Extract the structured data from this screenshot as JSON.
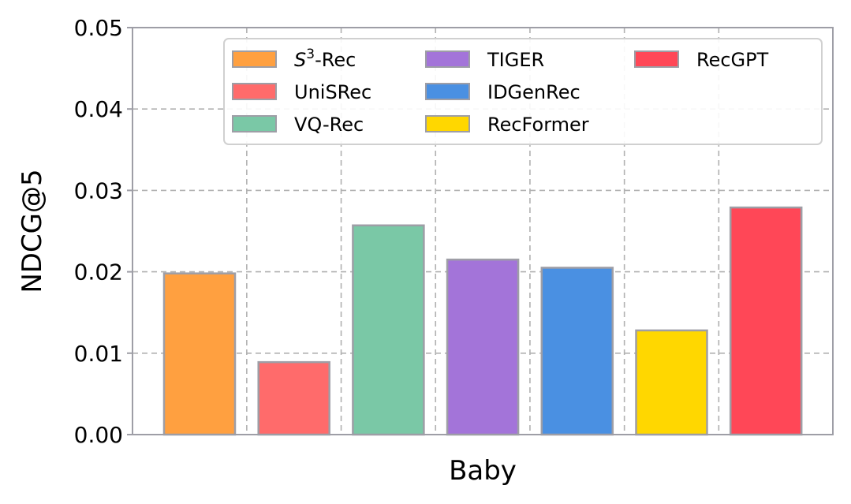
{
  "chart_data": {
    "type": "bar",
    "title": "",
    "xlabel": "Baby",
    "ylabel": "NDCG@5",
    "ylim": [
      0,
      0.05
    ],
    "yticks": [
      "0.00",
      "0.01",
      "0.02",
      "0.03",
      "0.04",
      "0.05"
    ],
    "ytick_values": [
      0,
      0.01,
      0.02,
      0.03,
      0.04,
      0.05
    ],
    "grid": true,
    "legend_position": "top-right",
    "legend_columns": 3,
    "series": [
      {
        "name": "S",
        "sup": "3",
        "suffix": "-Rec",
        "value": 0.0198,
        "color": "#ffa040"
      },
      {
        "name": "UniSRec",
        "value": 0.0089,
        "color": "#ff6b6b"
      },
      {
        "name": "VQ-Rec",
        "value": 0.0257,
        "color": "#7ac8a6"
      },
      {
        "name": "TIGER",
        "value": 0.0215,
        "color": "#a374d9"
      },
      {
        "name": "IDGenRec",
        "value": 0.0205,
        "color": "#4a90e2"
      },
      {
        "name": "RecFormer",
        "value": 0.0128,
        "color": "#ffd700"
      },
      {
        "name": "RecGPT",
        "value": 0.0279,
        "color": "#ff4757"
      }
    ]
  }
}
